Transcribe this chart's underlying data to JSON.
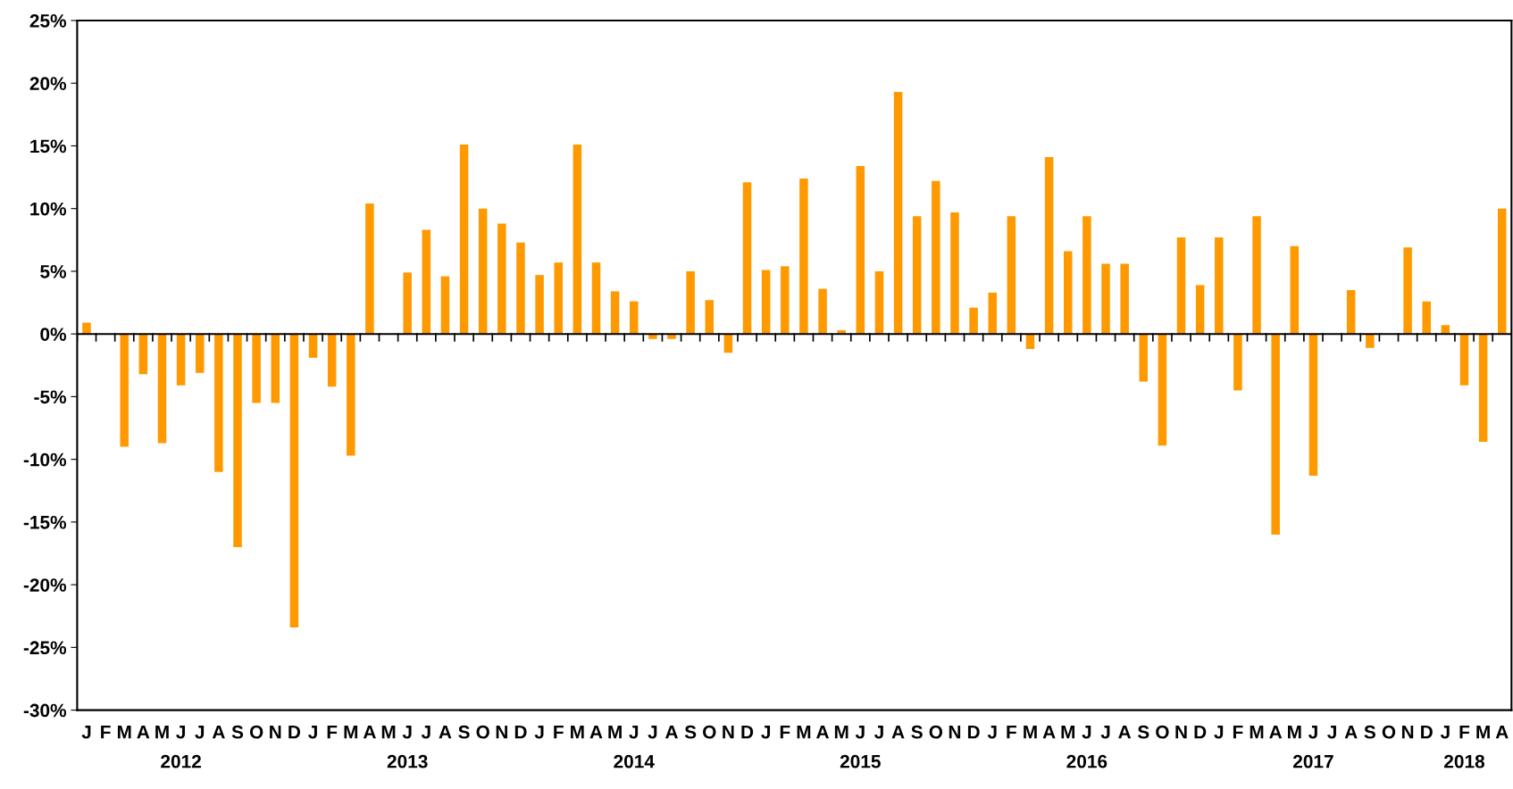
{
  "chart_data": {
    "type": "bar",
    "color": "#ff9900",
    "categories": [
      "J",
      "F",
      "M",
      "A",
      "M",
      "J\n2012",
      "J",
      "A",
      "S",
      "O",
      "N",
      "D",
      "J",
      "F",
      "M",
      "A",
      "M",
      "J\n2013",
      "J",
      "A",
      "S",
      "O",
      "N",
      "D",
      "J",
      "F",
      "M",
      "A",
      "M",
      "J\n2014",
      "J",
      "A",
      "S",
      "O",
      "N",
      "D",
      "J",
      "F",
      "M",
      "A",
      "M",
      "J\n2015",
      "J",
      "A",
      "S",
      "O",
      "N",
      "D",
      "J",
      "F",
      "M",
      "A",
      "M",
      "J\n2016",
      "J",
      "A",
      "S",
      "O",
      "N",
      "D",
      "J",
      "F",
      "M",
      "A",
      "M",
      "J\n2017",
      "J",
      "A",
      "S",
      "O",
      "N",
      "D",
      "J",
      "F\n2018",
      "M",
      "A"
    ],
    "values": [
      0.9,
      0,
      -9,
      -3.2,
      -8.7,
      -4.1,
      -3.1,
      -11,
      -17,
      -5.5,
      -5.5,
      -23.4,
      -1.9,
      -4.2,
      -9.7,
      10.4,
      0,
      4.9,
      8.3,
      4.6,
      15.1,
      10,
      8.8,
      7.3,
      4.7,
      5.7,
      15.1,
      5.7,
      3.4,
      2.6,
      -0.4,
      -0.4,
      5,
      2.7,
      -1.5,
      12.1,
      5.1,
      5.4,
      12.4,
      3.6,
      0.3,
      13.4,
      5,
      19.3,
      9.4,
      12.2,
      9.7,
      2.1,
      3.3,
      9.4,
      -1.2,
      14.1,
      6.6,
      9.4,
      5.6,
      5.6,
      -3.8,
      -8.9,
      7.7,
      3.9,
      7.7,
      -4.5,
      9.4,
      -16,
      7,
      -11.3,
      0,
      3.5,
      -1.1,
      0,
      6.9,
      2.6,
      0.7,
      -4.1,
      -8.6,
      10
    ],
    "ylim": [
      -30,
      25
    ],
    "yticks": [
      {
        "value": -30,
        "label": "-30%"
      },
      {
        "value": -25,
        "label": "-25%"
      },
      {
        "value": -20,
        "label": "-20%"
      },
      {
        "value": -15,
        "label": "-15%"
      },
      {
        "value": -10,
        "label": "-10%"
      },
      {
        "value": -5,
        "label": "-5%"
      },
      {
        "value": 0,
        "label": "0%"
      },
      {
        "value": 5,
        "label": "5%"
      },
      {
        "value": 10,
        "label": "10%"
      },
      {
        "value": 15,
        "label": "15%"
      },
      {
        "value": 20,
        "label": "20%"
      },
      {
        "value": 25,
        "label": "25%"
      }
    ],
    "ref_lines": [
      {
        "axis": "y",
        "value": 0,
        "color": "#000000"
      }
    ],
    "grid": false
  }
}
